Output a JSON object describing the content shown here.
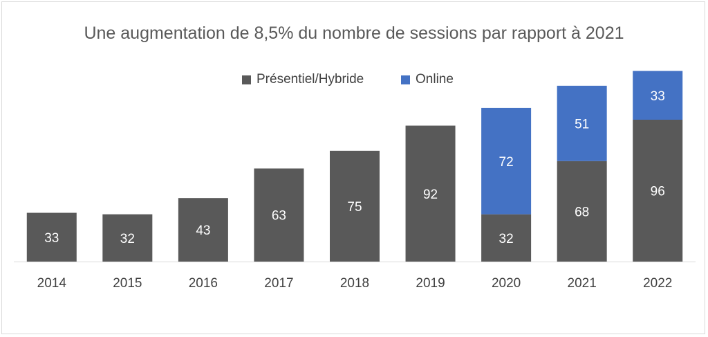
{
  "chart_data": {
    "type": "bar",
    "stacked": true,
    "title": "Une augmentation de 8,5% du nombre de sessions par rapport à 2021",
    "categories": [
      "2014",
      "2015",
      "2016",
      "2017",
      "2018",
      "2019",
      "2020",
      "2021",
      "2022"
    ],
    "series": [
      {
        "name": "Présentiel/Hybride",
        "color": "#595959",
        "values": [
          33,
          32,
          43,
          63,
          75,
          92,
          32,
          68,
          96
        ]
      },
      {
        "name": "Online",
        "color": "#4472c4",
        "values": [
          0,
          0,
          0,
          0,
          0,
          0,
          72,
          51,
          33
        ]
      }
    ],
    "xlabel": "",
    "ylabel": "",
    "ylim": [
      0,
      133
    ],
    "grid": false,
    "legend_position": "top",
    "data_labels": true,
    "colors": {
      "label_text": "#ffffff",
      "axis_text": "#404040",
      "axis_line": "#d9d9d9"
    }
  }
}
